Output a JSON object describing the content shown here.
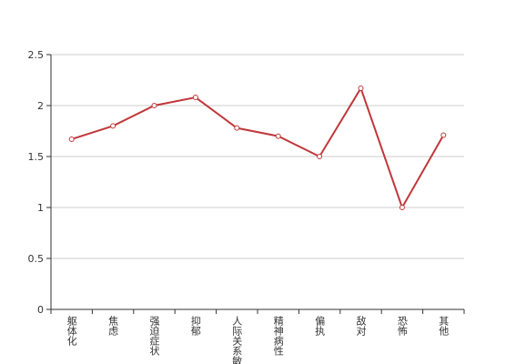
{
  "chart_data": {
    "type": "line",
    "categories": [
      "躯体化",
      "焦虑",
      "强迫症状",
      "抑郁",
      "人际关系敏感",
      "精神病性",
      "偏执",
      "敌对",
      "恐怖",
      "其他"
    ],
    "series": [
      {
        "color": "#c0373a",
        "values": [
          1.67,
          1.8,
          2.0,
          2.08,
          1.78,
          1.7,
          1.5,
          2.17,
          1.0,
          1.71
        ]
      }
    ],
    "ylim": [
      0,
      2.5
    ],
    "yticks": [
      0,
      0.5,
      1,
      1.5,
      2,
      2.5
    ],
    "grid": true
  }
}
